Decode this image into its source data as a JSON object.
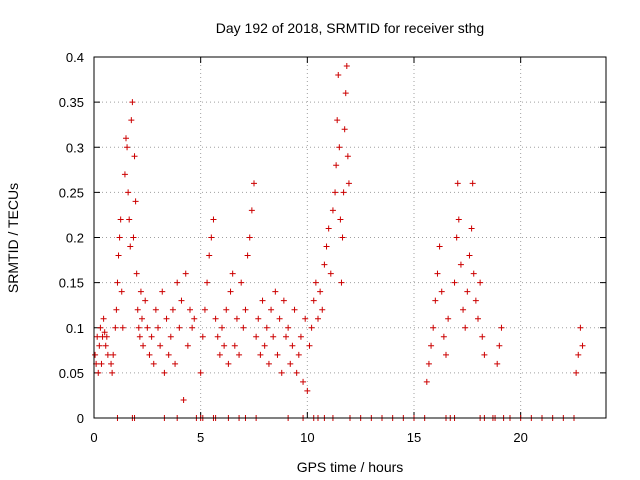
{
  "chart_data": {
    "type": "scatter",
    "title": "Day 192 of 2018, SRMTID for receiver sthg",
    "xlabel": "GPS time / hours",
    "ylabel": "SRMTID / TECUs",
    "xlim": [
      0,
      24
    ],
    "ylim": [
      0,
      0.4
    ],
    "xticks": [
      0,
      5,
      10,
      15,
      20
    ],
    "yticks": [
      0,
      0.05,
      0.1,
      0.15,
      0.2,
      0.25,
      0.3,
      0.35,
      0.4
    ],
    "xtick_labels": [
      "0",
      "5",
      "10",
      "15",
      "20"
    ],
    "ytick_labels": [
      "0",
      "0.05",
      "0.1",
      "0.15",
      "0.2",
      "0.25",
      "0.3",
      "0.35",
      "0.4"
    ],
    "grid": true,
    "marker": "plus",
    "color": "#cc0000",
    "series": [
      {
        "name": "SRMTID",
        "points": [
          [
            0.05,
            0.07
          ],
          [
            0.1,
            0.06
          ],
          [
            0.15,
            0.09
          ],
          [
            0.2,
            0.05
          ],
          [
            0.25,
            0.08
          ],
          [
            0.3,
            0.1
          ],
          [
            0.35,
            0.06
          ],
          [
            0.4,
            0.09
          ],
          [
            0.45,
            0.11
          ],
          [
            0.5,
            0.095
          ],
          [
            0.55,
            0.08
          ],
          [
            0.6,
            0.09
          ],
          [
            0.65,
            0.07
          ],
          [
            0.8,
            0.06
          ],
          [
            0.85,
            0.05
          ],
          [
            0.9,
            0.07
          ],
          [
            1.0,
            0.1
          ],
          [
            1.05,
            0.12
          ],
          [
            1.1,
            0.15
          ],
          [
            1.15,
            0.18
          ],
          [
            1.2,
            0.2
          ],
          [
            1.25,
            0.22
          ],
          [
            1.3,
            0.14
          ],
          [
            1.35,
            0.1
          ],
          [
            1.45,
            0.27
          ],
          [
            1.5,
            0.31
          ],
          [
            1.55,
            0.3
          ],
          [
            1.6,
            0.25
          ],
          [
            1.65,
            0.22
          ],
          [
            1.7,
            0.19
          ],
          [
            1.75,
            0.33
          ],
          [
            1.8,
            0.35
          ],
          [
            1.85,
            0.2
          ],
          [
            1.9,
            0.29
          ],
          [
            1.95,
            0.24
          ],
          [
            2.0,
            0.16
          ],
          [
            2.05,
            0.12
          ],
          [
            2.1,
            0.1
          ],
          [
            2.15,
            0.09
          ],
          [
            2.2,
            0.14
          ],
          [
            2.25,
            0.11
          ],
          [
            2.3,
            0.08
          ],
          [
            2.4,
            0.13
          ],
          [
            2.5,
            0.1
          ],
          [
            2.6,
            0.07
          ],
          [
            2.7,
            0.09
          ],
          [
            2.8,
            0.06
          ],
          [
            2.9,
            0.12
          ],
          [
            3.0,
            0.1
          ],
          [
            3.1,
            0.08
          ],
          [
            3.2,
            0.14
          ],
          [
            3.3,
            0.05
          ],
          [
            3.4,
            0.11
          ],
          [
            3.5,
            0.07
          ],
          [
            3.6,
            0.09
          ],
          [
            3.7,
            0.12
          ],
          [
            3.8,
            0.06
          ],
          [
            3.9,
            0.15
          ],
          [
            4.0,
            0.1
          ],
          [
            4.1,
            0.13
          ],
          [
            4.2,
            0.02
          ],
          [
            4.3,
            0.16
          ],
          [
            4.4,
            0.08
          ],
          [
            4.5,
            0.12
          ],
          [
            4.6,
            0.1
          ],
          [
            4.7,
            0.11
          ],
          [
            5.0,
            0.05
          ],
          [
            5.1,
            0.09
          ],
          [
            5.2,
            0.12
          ],
          [
            5.3,
            0.15
          ],
          [
            5.4,
            0.18
          ],
          [
            5.5,
            0.2
          ],
          [
            5.6,
            0.22
          ],
          [
            5.7,
            0.11
          ],
          [
            5.8,
            0.09
          ],
          [
            5.9,
            0.07
          ],
          [
            6.0,
            0.1
          ],
          [
            6.1,
            0.08
          ],
          [
            6.2,
            0.12
          ],
          [
            6.3,
            0.06
          ],
          [
            6.4,
            0.14
          ],
          [
            6.5,
            0.16
          ],
          [
            6.6,
            0.08
          ],
          [
            6.7,
            0.11
          ],
          [
            6.8,
            0.07
          ],
          [
            6.9,
            0.15
          ],
          [
            7.0,
            0.1
          ],
          [
            7.1,
            0.12
          ],
          [
            7.2,
            0.18
          ],
          [
            7.3,
            0.2
          ],
          [
            7.4,
            0.23
          ],
          [
            7.5,
            0.26
          ],
          [
            7.6,
            0.09
          ],
          [
            7.7,
            0.11
          ],
          [
            7.8,
            0.07
          ],
          [
            7.9,
            0.13
          ],
          [
            8.0,
            0.08
          ],
          [
            8.1,
            0.1
          ],
          [
            8.2,
            0.06
          ],
          [
            8.3,
            0.12
          ],
          [
            8.4,
            0.09
          ],
          [
            8.5,
            0.14
          ],
          [
            8.6,
            0.07
          ],
          [
            8.7,
            0.11
          ],
          [
            8.8,
            0.05
          ],
          [
            8.9,
            0.13
          ],
          [
            9.0,
            0.09
          ],
          [
            9.1,
            0.1
          ],
          [
            9.2,
            0.06
          ],
          [
            9.3,
            0.08
          ],
          [
            9.4,
            0.12
          ],
          [
            9.5,
            0.05
          ],
          [
            9.6,
            0.07
          ],
          [
            9.7,
            0.09
          ],
          [
            9.8,
            0.04
          ],
          [
            9.9,
            0.11
          ],
          [
            10.0,
            0.03
          ],
          [
            10.1,
            0.08
          ],
          [
            10.2,
            0.1
          ],
          [
            10.3,
            0.13
          ],
          [
            10.4,
            0.15
          ],
          [
            10.5,
            0.11
          ],
          [
            10.6,
            0.14
          ],
          [
            10.7,
            0.12
          ],
          [
            10.8,
            0.17
          ],
          [
            10.9,
            0.19
          ],
          [
            11.0,
            0.21
          ],
          [
            11.1,
            0.16
          ],
          [
            11.2,
            0.23
          ],
          [
            11.3,
            0.25
          ],
          [
            11.35,
            0.28
          ],
          [
            11.4,
            0.33
          ],
          [
            11.45,
            0.38
          ],
          [
            11.5,
            0.3
          ],
          [
            11.55,
            0.22
          ],
          [
            11.6,
            0.15
          ],
          [
            11.65,
            0.2
          ],
          [
            11.7,
            0.25
          ],
          [
            11.75,
            0.32
          ],
          [
            11.8,
            0.36
          ],
          [
            11.85,
            0.39
          ],
          [
            11.9,
            0.29
          ],
          [
            11.95,
            0.26
          ],
          [
            15.6,
            0.04
          ],
          [
            15.7,
            0.06
          ],
          [
            15.8,
            0.08
          ],
          [
            15.9,
            0.1
          ],
          [
            16.0,
            0.13
          ],
          [
            16.1,
            0.16
          ],
          [
            16.2,
            0.19
          ],
          [
            16.3,
            0.14
          ],
          [
            16.4,
            0.09
          ],
          [
            16.5,
            0.07
          ],
          [
            16.6,
            0.11
          ],
          [
            16.9,
            0.15
          ],
          [
            17.0,
            0.2
          ],
          [
            17.05,
            0.26
          ],
          [
            17.1,
            0.22
          ],
          [
            17.2,
            0.17
          ],
          [
            17.3,
            0.12
          ],
          [
            17.4,
            0.1
          ],
          [
            17.5,
            0.14
          ],
          [
            17.6,
            0.18
          ],
          [
            17.7,
            0.21
          ],
          [
            17.75,
            0.26
          ],
          [
            17.8,
            0.16
          ],
          [
            17.9,
            0.13
          ],
          [
            18.0,
            0.11
          ],
          [
            18.1,
            0.15
          ],
          [
            18.2,
            0.09
          ],
          [
            18.3,
            0.07
          ],
          [
            18.9,
            0.06
          ],
          [
            19.0,
            0.08
          ],
          [
            19.1,
            0.1
          ],
          [
            22.6,
            0.05
          ],
          [
            22.7,
            0.07
          ],
          [
            22.8,
            0.1
          ],
          [
            22.9,
            0.08
          ]
        ],
        "zeros_x": [
          1.1,
          1.8,
          1.9,
          3.3,
          3.9,
          4.8,
          5.0,
          5.1,
          5.6,
          5.7,
          6.3,
          6.8,
          7.1,
          7.6,
          9.1,
          9.8,
          10.3,
          10.5,
          10.8,
          11.2,
          12.0,
          12.5,
          13.0,
          13.5,
          14.0,
          14.5,
          15.0,
          15.5,
          16.5,
          16.7,
          16.9,
          18.1,
          18.3,
          18.7,
          18.8,
          19.2,
          19.5,
          20.0,
          20.5,
          21.0,
          21.5,
          22.0,
          22.5
        ]
      }
    ]
  }
}
